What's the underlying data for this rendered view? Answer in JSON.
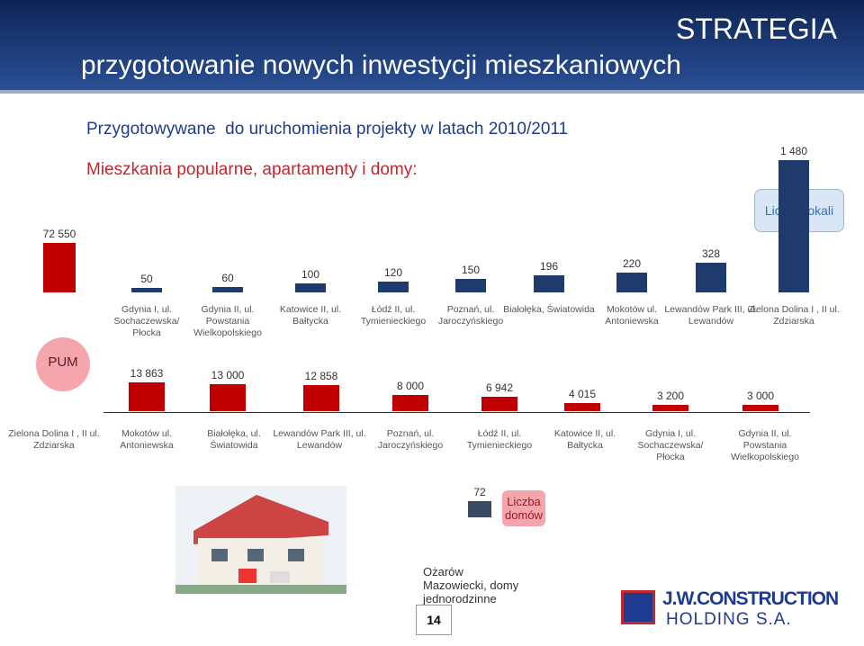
{
  "header": {
    "title": "STRATEGIA",
    "subtitle": "przygotowanie nowych inwestycji mieszkaniowych"
  },
  "heading": "Przygotowywane  do uruchomienia projekty w latach 2010/2011",
  "subheading": "Mieszkania popularne, apartamenty i domy:",
  "chart_data": [
    {
      "type": "bar",
      "legend": "Liczba lokali",
      "categories": [
        "Gdynia I, ul. Sochaczewska/ Płocka",
        "Gdynia II, ul. Powstania Wielkopolskiego",
        "Katowice II, ul. Bałtycka",
        "Łódź II, ul. Tymienieckiego",
        "Poznań, ul. Jaroczyńskiego",
        "Białołęka, Światowida",
        "Mokotów ul. Antoniewska",
        "Lewandów Park III, ul. Lewandów",
        "Zielona Dolina I , II ul. Zdziarska"
      ],
      "values": [
        50,
        60,
        100,
        120,
        150,
        196,
        220,
        328,
        1480
      ],
      "value_labels": [
        "50",
        "60",
        "100",
        "120",
        "150",
        "196",
        "220",
        "328",
        "1 480"
      ],
      "color": "#1f3b6e",
      "ylim": [
        0,
        1480
      ]
    },
    {
      "type": "bar",
      "legend": "PUM",
      "categories": [
        "Zielona Dolina I , II ul. Zdziarska",
        "Mokotów ul. Antoniewska",
        "Białołęka, ul. Światowida",
        "Lewandów Park III, ul. Lewandów",
        "Poznań, ul. Jaroczyńskiego",
        "Łódź II, ul. Tymienieckiego",
        "Katowice II, ul. Bałtycka",
        "Gdynia I, ul. Sochaczewska/ Płocka",
        "Gdynia II, ul. Powstania Wielkopolskiego"
      ],
      "values": [
        null,
        13863,
        13000,
        12858,
        8000,
        6942,
        4015,
        3200,
        3000
      ],
      "value_labels": [
        null,
        "13 863",
        "13 000",
        "12 858",
        "8 000",
        "6 942",
        "4 015",
        "3 200",
        "3 000"
      ],
      "color": "#c00000",
      "ylim": [
        0,
        14000
      ]
    },
    {
      "type": "bar",
      "legend": "Liczba domów",
      "caption": "Ożarów Mazowiecki, domy jednorodzinne",
      "values": [
        72
      ],
      "color": "#3a4a63",
      "ylim": [
        0,
        72
      ]
    },
    {
      "type": "bar",
      "values": [
        72550
      ],
      "value_labels": [
        "72 550"
      ],
      "color": "#c00000",
      "ylim": [
        0,
        72550
      ]
    }
  ],
  "page_number": "14",
  "logo": {
    "name": "J.W.CONSTRUCTION",
    "sub": "HOLDING S.A."
  }
}
